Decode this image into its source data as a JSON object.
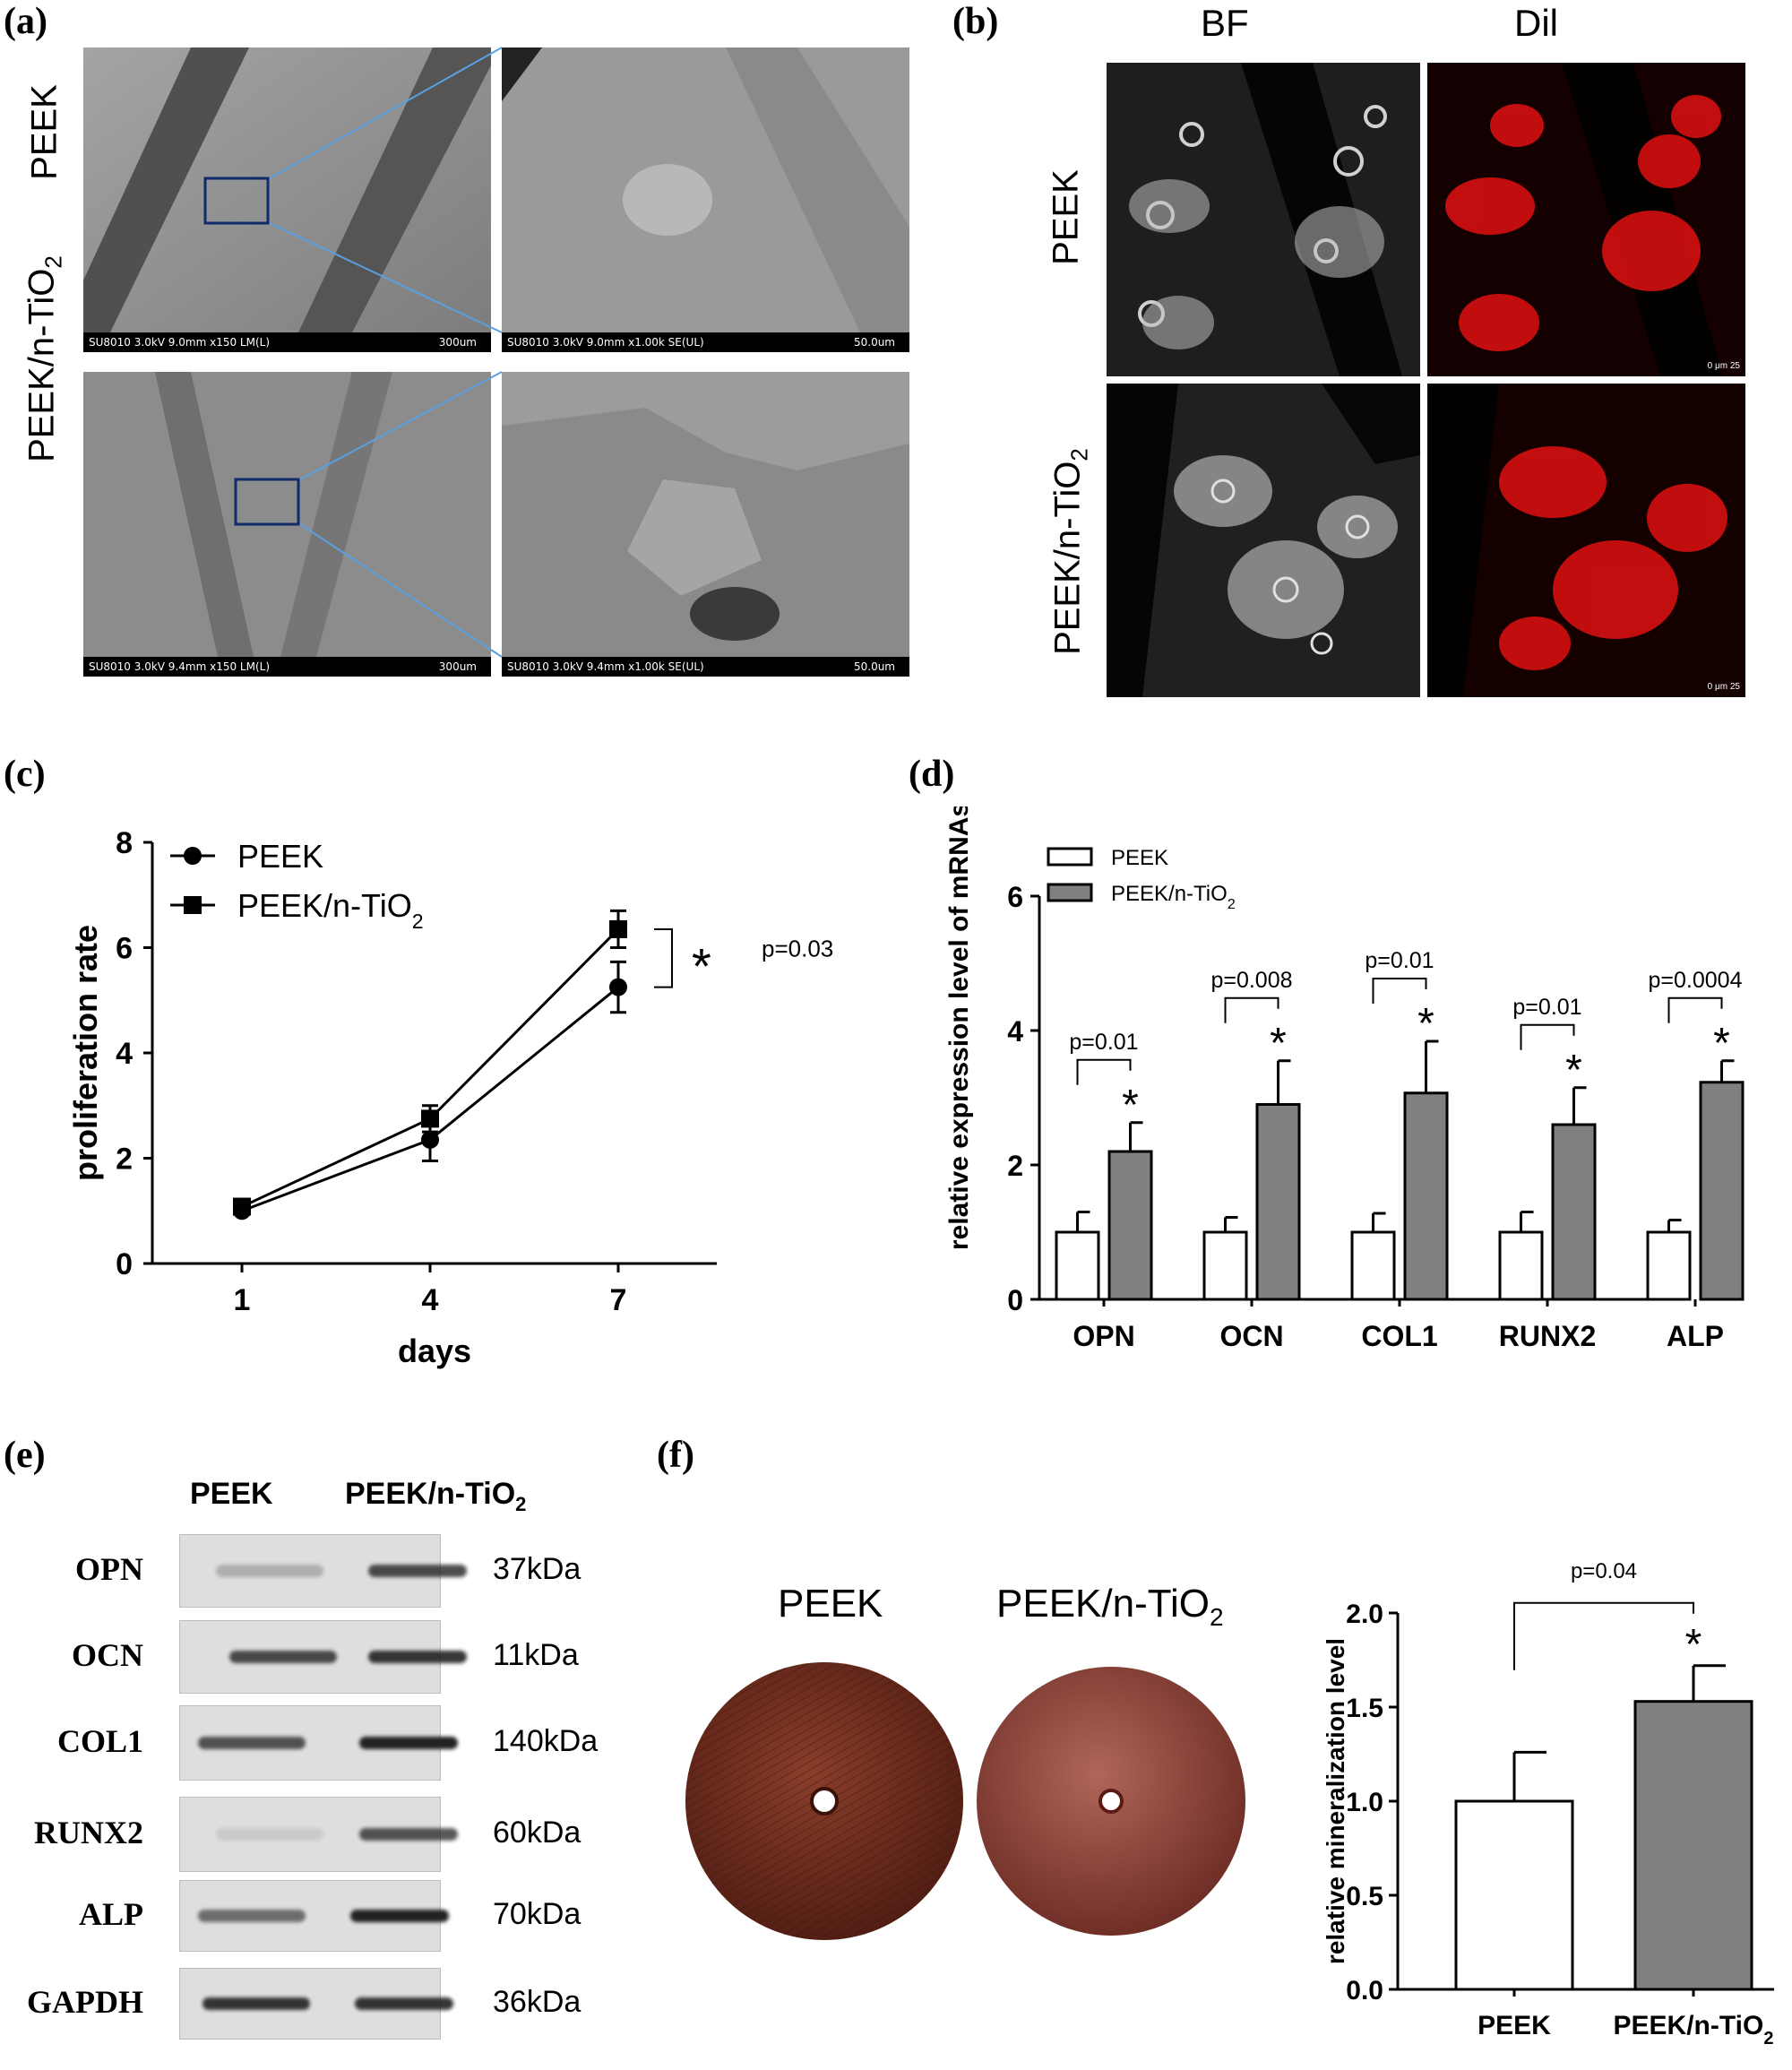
{
  "panels": {
    "a": {
      "letter": "(a)",
      "row_labels": [
        "PEEK",
        "PEEK/n-TiO",
        "2"
      ],
      "images": [
        {
          "caption": "SU8010 3.0kV 9.0mm x150 LM(L)",
          "scale": "300um"
        },
        {
          "caption": "SU8010 3.0kV 9.0mm x1.00k SE(UL)",
          "scale": "50.0um"
        },
        {
          "caption": "SU8010 3.0kV 9.4mm x150 LM(L)",
          "scale": "300um"
        },
        {
          "caption": "SU8010 3.0kV 9.4mm x1.00k SE(UL)",
          "scale": "50.0um"
        }
      ]
    },
    "b": {
      "letter": "(b)",
      "col_labels": [
        "BF",
        "Dil"
      ],
      "row_labels": [
        "PEEK",
        "PEEK/n-TiO",
        "2"
      ],
      "scale_text": "0 μm 25"
    },
    "c": {
      "letter": "(c)",
      "p_value": "p=0.03",
      "star": "*"
    },
    "d": {
      "letter": "(d)"
    },
    "e": {
      "letter": "(e)",
      "col_labels": [
        "PEEK",
        "PEEK/n-TiO",
        "2"
      ],
      "rows": [
        {
          "protein": "OPN",
          "kda": "37kDa"
        },
        {
          "protein": "OCN",
          "kda": "11kDa"
        },
        {
          "protein": "COL1",
          "kda": "140kDa"
        },
        {
          "protein": "RUNX2",
          "kda": "60kDa"
        },
        {
          "protein": "ALP",
          "kda": "70kDa"
        },
        {
          "protein": "GAPDH",
          "kda": "36kDa"
        }
      ]
    },
    "f": {
      "letter": "(f)",
      "disc_labels": [
        "PEEK",
        "PEEK/n-TiO",
        "2"
      ]
    }
  },
  "colors": {
    "white_bar": "#ffffff",
    "gray_bar": "#808080",
    "fluor_red": "#e01010"
  },
  "chart_data": [
    {
      "id": "c",
      "type": "line",
      "xlabel": "days",
      "ylabel": "proliferation rate",
      "x": [
        1,
        4,
        7
      ],
      "ylim": [
        0,
        8
      ],
      "yticks": [
        0,
        2,
        4,
        6,
        8
      ],
      "legend_placement": "top-left",
      "series": [
        {
          "name": "PEEK",
          "marker": "circle",
          "values": [
            1.0,
            2.35,
            5.25
          ],
          "errors": [
            0.05,
            0.4,
            0.48
          ]
        },
        {
          "name": "PEEK/n-TiO2",
          "name_parts": [
            "PEEK/n-TiO",
            "2"
          ],
          "marker": "square",
          "values": [
            1.08,
            2.75,
            6.35
          ],
          "errors": [
            0.05,
            0.25,
            0.35
          ]
        }
      ],
      "annotation": {
        "text": "p=0.03",
        "star": "*"
      }
    },
    {
      "id": "d",
      "type": "bar",
      "ylabel": "relative expression level of mRNAs",
      "categories": [
        "OPN",
        "OCN",
        "COL1",
        "RUNX2",
        "ALP"
      ],
      "ylim": [
        0,
        6
      ],
      "yticks": [
        0,
        2,
        4,
        6
      ],
      "legend_placement": "top-left",
      "series": [
        {
          "name": "PEEK",
          "color": "#ffffff",
          "values": [
            1.0,
            1.0,
            1.0,
            1.0,
            1.0
          ],
          "errors": [
            0.3,
            0.22,
            0.28,
            0.3,
            0.18
          ]
        },
        {
          "name": "PEEK/n-TiO2",
          "name_parts": [
            "PEEK/n-TiO",
            "2"
          ],
          "color": "#808080",
          "values": [
            2.2,
            2.9,
            3.07,
            2.6,
            3.23
          ],
          "errors": [
            0.43,
            0.65,
            0.77,
            0.55,
            0.32
          ]
        }
      ],
      "p_values": [
        "p=0.01",
        "p=0.008",
        "p=0.01",
        "p=0.01",
        "p=0.0004"
      ],
      "star": "*"
    },
    {
      "id": "f",
      "type": "bar",
      "ylabel": "relative mineralization level",
      "categories": [
        "PEEK",
        "PEEK/n-TiO2"
      ],
      "category_parts": [
        [
          "PEEK",
          ""
        ],
        [
          "PEEK/n-TiO",
          "2"
        ]
      ],
      "ylim": [
        0,
        2.0
      ],
      "yticks": [
        "0.0",
        "0.5",
        "1.0",
        "1.5",
        "2.0"
      ],
      "values": [
        1.0,
        1.53
      ],
      "errors": [
        0.26,
        0.19
      ],
      "colors": [
        "#ffffff",
        "#808080"
      ],
      "p_value": "p=0.04",
      "star": "*"
    }
  ]
}
